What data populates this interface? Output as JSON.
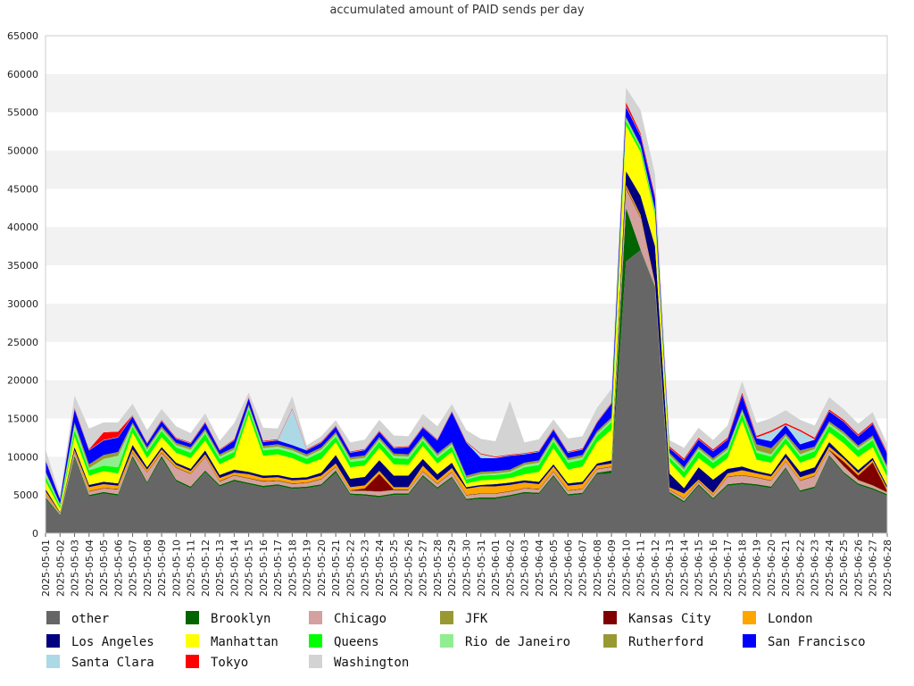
{
  "chart_data": {
    "type": "area",
    "stacked": true,
    "title": "accumulated amount of PAID sends per day",
    "xlabel": "",
    "ylabel": "",
    "ylim": [
      0,
      65000
    ],
    "yticks": [
      0,
      5000,
      10000,
      15000,
      20000,
      25000,
      30000,
      35000,
      40000,
      45000,
      50000,
      55000,
      60000,
      65000
    ],
    "grid": "horizontal bands",
    "legend_position": "bottom",
    "x": [
      "2025-05-01",
      "2025-05-02",
      "2025-05-03",
      "2025-05-04",
      "2025-05-05",
      "2025-05-06",
      "2025-05-07",
      "2025-05-08",
      "2025-05-09",
      "2025-05-10",
      "2025-05-11",
      "2025-05-12",
      "2025-05-13",
      "2025-05-14",
      "2025-05-15",
      "2025-05-16",
      "2025-05-17",
      "2025-05-18",
      "2025-05-19",
      "2025-05-20",
      "2025-05-21",
      "2025-05-22",
      "2025-05-23",
      "2025-05-24",
      "2025-05-25",
      "2025-05-26",
      "2025-05-27",
      "2025-05-28",
      "2025-05-29",
      "2025-05-30",
      "2025-05-31",
      "2025-06-01",
      "2025-06-02",
      "2025-06-03",
      "2025-06-04",
      "2025-06-05",
      "2025-06-06",
      "2025-06-07",
      "2025-06-08",
      "2025-06-09",
      "2025-06-10",
      "2025-06-11",
      "2025-06-12",
      "2025-06-13",
      "2025-06-14",
      "2025-06-15",
      "2025-06-16",
      "2025-06-17",
      "2025-06-18",
      "2025-06-19",
      "2025-06-20",
      "2025-06-21",
      "2025-06-22",
      "2025-06-23",
      "2025-06-24",
      "2025-06-25",
      "2025-06-26",
      "2025-06-27",
      "2025-06-28"
    ],
    "series": [
      {
        "name": "other",
        "color": "#666666",
        "values": [
          4500,
          2300,
          9800,
          4800,
          5200,
          4900,
          9800,
          6500,
          9800,
          6800,
          5900,
          8000,
          6100,
          6800,
          6400,
          6000,
          6200,
          5800,
          5900,
          6200,
          7900,
          5000,
          4900,
          4700,
          5000,
          5000,
          7400,
          5800,
          7200,
          4300,
          4500,
          4500,
          4800,
          5200,
          5100,
          7400,
          4900,
          5100,
          7700,
          7800,
          35500,
          37000,
          32000,
          5200,
          4000,
          6200,
          4400,
          6200,
          6400,
          6200,
          5900,
          8400,
          5400,
          5900,
          10000,
          7800,
          6300,
          5700,
          4900
        ]
      },
      {
        "name": "Brooklyn",
        "color": "#006400",
        "values": [
          200,
          100,
          300,
          200,
          200,
          200,
          300,
          200,
          300,
          200,
          200,
          200,
          200,
          200,
          200,
          200,
          200,
          200,
          200,
          200,
          300,
          200,
          200,
          200,
          200,
          200,
          200,
          200,
          200,
          200,
          200,
          200,
          200,
          200,
          200,
          200,
          200,
          200,
          200,
          400,
          7000,
          100,
          200,
          200,
          200,
          200,
          200,
          200,
          200,
          200,
          200,
          200,
          200,
          200,
          200,
          200,
          200,
          200,
          200
        ]
      },
      {
        "name": "Chicago",
        "color": "#d4a0a0",
        "values": [
          300,
          100,
          400,
          400,
          400,
          600,
          300,
          1200,
          300,
          1500,
          1600,
          1700,
          400,
          500,
          500,
          500,
          400,
          400,
          400,
          600,
          400,
          300,
          400,
          500,
          400,
          400,
          400,
          400,
          500,
          400,
          400,
          400,
          400,
          400,
          400,
          400,
          400,
          400,
          400,
          400,
          2400,
          4000,
          200,
          200,
          300,
          300,
          300,
          900,
          900,
          800,
          700,
          700,
          1200,
          1300,
          600,
          700,
          400,
          300,
          200
        ]
      },
      {
        "name": "JFK",
        "color": "#999933",
        "values": [
          50,
          20,
          80,
          60,
          60,
          60,
          80,
          60,
          80,
          60,
          60,
          60,
          60,
          60,
          60,
          60,
          60,
          60,
          60,
          60,
          60,
          60,
          60,
          60,
          60,
          60,
          60,
          60,
          60,
          60,
          60,
          60,
          60,
          60,
          60,
          60,
          60,
          60,
          60,
          60,
          150,
          100,
          60,
          50,
          50,
          60,
          50,
          60,
          60,
          60,
          60,
          60,
          60,
          60,
          60,
          60,
          60,
          60,
          50
        ]
      },
      {
        "name": "Kansas City",
        "color": "#800000",
        "values": [
          50,
          20,
          80,
          60,
          60,
          60,
          80,
          60,
          80,
          60,
          60,
          60,
          60,
          60,
          60,
          60,
          60,
          60,
          60,
          60,
          60,
          60,
          300,
          2300,
          60,
          60,
          60,
          60,
          60,
          60,
          60,
          60,
          60,
          60,
          60,
          60,
          60,
          60,
          60,
          60,
          150,
          100,
          60,
          50,
          50,
          60,
          50,
          60,
          60,
          60,
          60,
          60,
          60,
          60,
          60,
          600,
          600,
          3000,
          200
        ]
      },
      {
        "name": "London",
        "color": "#ffa500",
        "values": [
          400,
          100,
          200,
          500,
          500,
          400,
          400,
          300,
          400,
          300,
          300,
          300,
          400,
          300,
          500,
          400,
          400,
          400,
          400,
          400,
          400,
          400,
          400,
          400,
          300,
          300,
          700,
          400,
          500,
          800,
          900,
          900,
          800,
          700,
          600,
          600,
          600,
          600,
          400,
          400,
          300,
          300,
          200,
          300,
          600,
          200,
          300,
          400,
          600,
          500,
          500,
          500,
          400,
          400,
          400,
          400,
          300,
          300,
          300
        ]
      },
      {
        "name": "Los Angeles",
        "color": "#000080",
        "values": [
          300,
          100,
          400,
          300,
          300,
          300,
          600,
          300,
          300,
          300,
          300,
          500,
          400,
          400,
          300,
          300,
          300,
          300,
          300,
          400,
          1100,
          1100,
          1100,
          1400,
          1500,
          1500,
          900,
          800,
          700,
          200,
          200,
          300,
          300,
          300,
          300,
          300,
          300,
          300,
          300,
          400,
          1800,
          2500,
          4800,
          1800,
          700,
          1600,
          1700,
          600,
          500,
          300,
          300,
          500,
          700,
          700,
          600,
          300,
          400,
          300,
          300
        ]
      },
      {
        "name": "Manhattan",
        "color": "#ffff00",
        "values": [
          1000,
          500,
          1400,
          1200,
          1400,
          1300,
          1600,
          1200,
          1300,
          1300,
          1400,
          1300,
          1400,
          1600,
          7500,
          2600,
          2700,
          2600,
          1700,
          1800,
          1700,
          1500,
          1500,
          1600,
          1500,
          1400,
          1700,
          1400,
          1400,
          500,
          600,
          600,
          600,
          800,
          1300,
          2100,
          1800,
          2000,
          2800,
          4000,
          6000,
          5700,
          4000,
          1500,
          1300,
          1200,
          1400,
          1400,
          6000,
          1500,
          1500,
          1300,
          1200,
          1300,
          1300,
          1700,
          1700,
          1400,
          1200
        ]
      },
      {
        "name": "Queens",
        "color": "#00ff00",
        "values": [
          600,
          300,
          800,
          700,
          700,
          800,
          800,
          800,
          800,
          700,
          700,
          900,
          700,
          700,
          700,
          700,
          700,
          700,
          700,
          900,
          700,
          700,
          700,
          800,
          800,
          800,
          700,
          700,
          700,
          500,
          600,
          600,
          600,
          900,
          900,
          900,
          900,
          900,
          800,
          1000,
          600,
          500,
          400,
          600,
          800,
          900,
          800,
          800,
          900,
          900,
          800,
          700,
          800,
          800,
          800,
          900,
          900,
          900,
          800
        ]
      },
      {
        "name": "Rio de Janeiro",
        "color": "#90ee90",
        "values": [
          500,
          200,
          700,
          300,
          900,
          1500,
          200,
          300,
          300,
          300,
          400,
          300,
          300,
          300,
          300,
          300,
          300,
          300,
          300,
          300,
          300,
          300,
          300,
          300,
          300,
          300,
          300,
          300,
          300,
          200,
          200,
          200,
          200,
          300,
          300,
          300,
          300,
          300,
          300,
          300,
          300,
          200,
          200,
          300,
          300,
          300,
          300,
          300,
          300,
          300,
          300,
          300,
          300,
          300,
          300,
          300,
          300,
          300,
          300
        ]
      },
      {
        "name": "Rutherford",
        "color": "#999933",
        "values": [
          200,
          100,
          300,
          500,
          500,
          500,
          300,
          300,
          300,
          300,
          300,
          300,
          300,
          300,
          300,
          300,
          300,
          300,
          300,
          300,
          300,
          300,
          300,
          300,
          300,
          300,
          300,
          300,
          300,
          300,
          300,
          300,
          300,
          300,
          300,
          300,
          300,
          300,
          300,
          300,
          200,
          200,
          200,
          300,
          300,
          300,
          300,
          300,
          300,
          800,
          800,
          300,
          500,
          300,
          300,
          300,
          300,
          300,
          300
        ]
      },
      {
        "name": "San Francisco",
        "color": "#0000ff",
        "values": [
          1400,
          600,
          1700,
          1800,
          1900,
          1900,
          800,
          500,
          700,
          500,
          500,
          800,
          500,
          900,
          800,
          500,
          500,
          400,
          500,
          600,
          700,
          600,
          700,
          700,
          700,
          900,
          1100,
          1700,
          3900,
          4300,
          1800,
          1700,
          1800,
          1100,
          1100,
          900,
          700,
          700,
          1100,
          1800,
          1300,
          1200,
          1400,
          600,
          900,
          900,
          900,
          1000,
          1800,
          800,
          900,
          1100,
          800,
          900,
          1300,
          1300,
          1200,
          1500,
          1600
        ]
      },
      {
        "name": "Santa Clara",
        "color": "#add8e6",
        "values": [
          50,
          20,
          80,
          60,
          60,
          60,
          80,
          60,
          80,
          60,
          60,
          60,
          60,
          60,
          60,
          60,
          60,
          4700,
          60,
          60,
          60,
          60,
          60,
          60,
          60,
          60,
          60,
          60,
          60,
          60,
          500,
          100,
          60,
          60,
          60,
          60,
          60,
          60,
          60,
          60,
          100,
          100,
          60,
          60,
          60,
          60,
          60,
          60,
          60,
          100,
          1200,
          60,
          1700,
          60,
          60,
          60,
          60,
          60,
          60
        ]
      },
      {
        "name": "Tokyo",
        "color": "#ff0000",
        "values": [
          100,
          50,
          150,
          100,
          1000,
          700,
          100,
          100,
          100,
          100,
          100,
          100,
          100,
          100,
          100,
          100,
          100,
          100,
          100,
          100,
          100,
          100,
          100,
          100,
          100,
          100,
          100,
          100,
          100,
          100,
          100,
          100,
          100,
          100,
          100,
          100,
          100,
          100,
          100,
          100,
          500,
          300,
          300,
          200,
          200,
          200,
          200,
          200,
          300,
          200,
          200,
          200,
          200,
          200,
          200,
          200,
          200,
          200,
          200
        ]
      },
      {
        "name": "Washington",
        "color": "#d3d3d3",
        "values": [
          1300,
          400,
          1600,
          2700,
          1300,
          1200,
          1500,
          1600,
          1400,
          1500,
          1200,
          1100,
          1100,
          2100,
          600,
          1700,
          1400,
          1600,
          500,
          700,
          700,
          1200,
          1200,
          1400,
          1500,
          1300,
          1600,
          1700,
          900,
          1500,
          1900,
          2000,
          7000,
          1400,
          1500,
          1200,
          1700,
          1600,
          1800,
          1800,
          1900,
          3000,
          2800,
          800,
          1400,
          1300,
          1200,
          1600,
          1500,
          1700,
          1600,
          1700,
          1300,
          1600,
          1600,
          1400,
          1400,
          1300,
          1000
        ]
      }
    ]
  }
}
